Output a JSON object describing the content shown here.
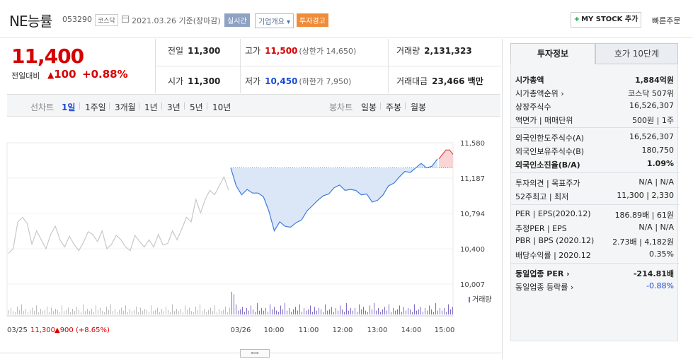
{
  "header": {
    "stock_name": "NE능률",
    "stock_code": "053290",
    "market": "코스닥",
    "date": "2021.03.26 기준(장마감)",
    "badge_realtime": "실시간",
    "badge_overview": "기업개요 ▾",
    "badge_warning": "투자경고",
    "mystock_plus": "+",
    "mystock_label": "MY STOCK 추가",
    "quick_order": "빠른주문"
  },
  "price": {
    "current": "11,400",
    "change_label": "전일대비",
    "change_arrow": "▲",
    "change_value": "100",
    "change_pct": "+0.88%"
  },
  "grid": {
    "prev_label": "전일",
    "prev_val": "11,300",
    "open_label": "시가",
    "open_val": "11,300",
    "high_label": "고가",
    "high_val": "11,500",
    "high_sub": "(상한가 14,650)",
    "low_label": "저가",
    "low_val": "10,450",
    "low_sub": "(하한가 7,950)",
    "volume_label": "거래량",
    "volume_val": "2,131,323",
    "amount_label": "거래대금",
    "amount_val": "23,466 백만"
  },
  "period_bar": {
    "line_label": "선차트",
    "line_periods": [
      "1일",
      "1주일",
      "3개월",
      "1년",
      "3년",
      "5년",
      "10년"
    ],
    "active_period": "1일",
    "candle_label": "봉차트",
    "candle_periods": [
      "일봉",
      "주봉",
      "월봉"
    ]
  },
  "chart_data": {
    "type": "line",
    "y_ticks": [
      "11,580",
      "11,187",
      "10,794",
      "10,400",
      "10,007"
    ],
    "ylim": [
      10007,
      11580
    ],
    "x_ticks": [
      "03/26",
      "10:00",
      "11:00",
      "12:00",
      "13:00",
      "14:00",
      "15:00"
    ],
    "prev_day_label": "03/25",
    "prev_day_close": "11,300",
    "prev_day_change": "▲900 (+8.65%)",
    "volume_label": "거래량",
    "reference_price": 11300,
    "series": [
      {
        "values": [
          10350,
          10400,
          10700,
          10750,
          10680,
          10450,
          10600,
          10500,
          10400,
          10560,
          10650,
          10500,
          10420,
          10540,
          10450,
          10380,
          10470,
          10590,
          10560,
          10480,
          10600,
          10400,
          10450,
          10550,
          10500,
          10420,
          10380,
          10550,
          10480,
          10420,
          10500,
          10420,
          10560,
          10440,
          10460,
          10600,
          10500,
          10620,
          10750,
          10700,
          10950,
          10800,
          10950,
          11050,
          11000,
          11100,
          11200,
          11050
        ]
      },
      {
        "values": [
          11300,
          11100,
          11000,
          11060,
          11020,
          11020,
          10980,
          10820,
          10600,
          10700,
          10650,
          10640,
          10690,
          10720,
          10820,
          10880,
          10940,
          10990,
          11010,
          11080,
          11110,
          11050,
          11060,
          11050,
          11000,
          11010,
          10920,
          10940,
          11000,
          11100,
          11130,
          11200,
          11260,
          11250,
          11300,
          11350,
          11300,
          11320,
          11400
        ]
      },
      {
        "values": [
          11400,
          11450,
          11500,
          11500,
          11450
        ]
      }
    ]
  },
  "right_panel": {
    "tab_active": "투자정보",
    "tab_inactive": "호가 10단계",
    "rows": [
      {
        "k": "시가총액",
        "v": "1,884억원"
      },
      {
        "k": "시가총액순위 ›",
        "v": "코스닥 507위"
      },
      {
        "k": "상장주식수",
        "v": "16,526,307"
      },
      {
        "k": "액면가 | 매매단위",
        "v": "500원 | 1주"
      },
      {
        "k": "외국인한도주식수(A)",
        "v": "16,526,307"
      },
      {
        "k": "외국인보유주식수(B)",
        "v": "180,750"
      },
      {
        "k": "외국인소진율(B/A)",
        "v": "1.09%"
      },
      {
        "k": "투자의견 | 목표주가",
        "v": "N/A | N/A"
      },
      {
        "k": "52주최고 | 최저",
        "v": "11,300 | 2,330"
      },
      {
        "k": "PER | EPS(2020.12)",
        "v": "186.89배 | 61원"
      },
      {
        "k": "추정PER | EPS",
        "v": "N/A | N/A"
      },
      {
        "k": "PBR | BPS (2020.12)",
        "v": "2.73배 | 4,182원"
      },
      {
        "k": "배당수익률 | 2020.12",
        "v": "0.35%"
      },
      {
        "k": "동일업종 PER ›",
        "v": "-214.81배"
      },
      {
        "k": "동일업종 등락률 ›",
        "v": "-0.88%"
      }
    ]
  },
  "scroll_handle": "⟺"
}
